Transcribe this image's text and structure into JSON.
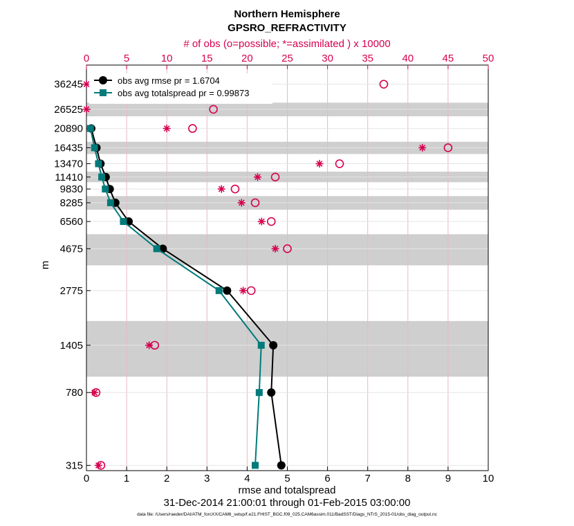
{
  "chart_data": {
    "type": "line",
    "title": "Northern Hemisphere",
    "subtitle": "GPSRO_REFRACTIVITY",
    "top_axis_label": "# of obs (o=possible; *=assimilated ) x 10000",
    "xlabel": "rmse and totalspread",
    "ylabel": "m",
    "date_range": "31-Dec-2014 21:00:01 through 01-Feb-2015 03:00:00",
    "footnote": "data file: /Users/raeder/DAI/ATM_forcXX/CAM6_setup/f.e21.FHIST_BGC.f09_025.CAM6assim.011/BadSST/Diags_NTrS_2015-01/obs_diag_output.nc",
    "xlim": [
      0,
      10
    ],
    "x_ticks": [
      "0",
      "1",
      "2",
      "3",
      "4",
      "5",
      "6",
      "7",
      "8",
      "9",
      "10"
    ],
    "top_xlim": [
      0,
      50
    ],
    "top_ticks": [
      "0",
      "5",
      "10",
      "15",
      "20",
      "25",
      "30",
      "35",
      "40",
      "45",
      "50"
    ],
    "levels": [
      315,
      780,
      1405,
      2775,
      4675,
      6560,
      8285,
      9830,
      11410,
      13470,
      16435,
      20890,
      26525,
      36245
    ],
    "level_labels": [
      "315",
      "780",
      "1405",
      "2775",
      "4675",
      "6560",
      "8285",
      "9830",
      "11410",
      "13470",
      "16435",
      "20890",
      "26525",
      "36245"
    ],
    "shaded_bands_m": [
      [
        950,
        1900
      ],
      [
        3800,
        5600
      ],
      [
        7600,
        9000
      ],
      [
        10700,
        12200
      ],
      [
        15200,
        17700
      ],
      [
        24300,
        28800
      ]
    ],
    "series": [
      {
        "name": "obs avg rmse",
        "legend": "obs avg rmse pr = 1.6704",
        "color": "#000000",
        "marker": "circle",
        "values": [
          4.85,
          4.6,
          4.65,
          3.5,
          1.9,
          1.05,
          0.72,
          0.58,
          0.48,
          0.35,
          0.25,
          0.12,
          null,
          null
        ]
      },
      {
        "name": "obs avg totalspread",
        "legend": "obs avg totalspread pr = 0.99873",
        "color": "#007a7a",
        "marker": "square",
        "values": [
          4.2,
          4.3,
          4.35,
          3.3,
          1.75,
          0.92,
          0.6,
          0.47,
          0.38,
          0.3,
          0.2,
          0.1,
          null,
          null
        ]
      }
    ],
    "obs_possible_x10000": [
      1.8,
      1.2,
      8.5,
      20.5,
      25.0,
      23.0,
      21.0,
      18.5,
      23.5,
      31.5,
      45.0,
      13.2,
      15.8,
      37.0
    ],
    "obs_assimilated_x10000": [
      1.5,
      1.0,
      7.8,
      19.5,
      23.5,
      21.8,
      19.3,
      16.8,
      21.3,
      29.0,
      41.8,
      10.0,
      0.0,
      0.0
    ]
  }
}
